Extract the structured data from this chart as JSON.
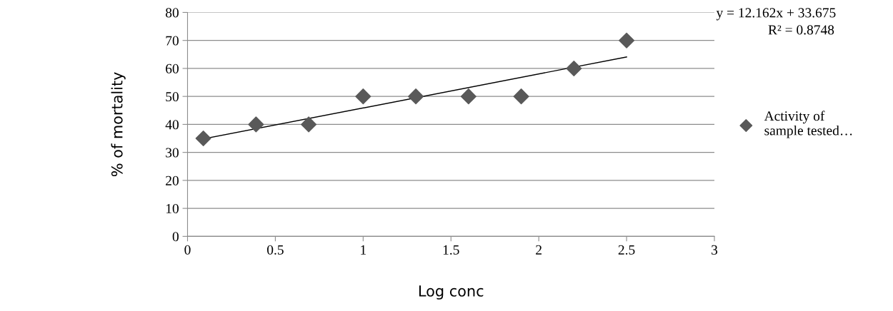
{
  "chart_data": {
    "type": "scatter",
    "xlabel": "Log conc",
    "ylabel": "% of mortality",
    "x": [
      0.09,
      0.39,
      0.69,
      1.0,
      1.3,
      1.6,
      1.9,
      2.2,
      2.5
    ],
    "series": [
      {
        "name": "Activity of\nsample tested…",
        "color": "#595959",
        "values": [
          35,
          40,
          40,
          50,
          50,
          50,
          50,
          60,
          70
        ],
        "marker": "diamond"
      },
      {
        "type": "line",
        "color": "#000000",
        "x": [
          0.09,
          2.5
        ],
        "values": [
          34.8,
          64.1
        ]
      }
    ],
    "annotations": [
      "y = 12.162x + 33.675",
      "R² = 0.8748"
    ],
    "xlim": [
      0,
      3
    ],
    "xticks": [
      0,
      0.5,
      1,
      1.5,
      2,
      2.5,
      3
    ],
    "ylim": [
      0,
      80
    ],
    "yticks": [
      0,
      10,
      20,
      30,
      40,
      50,
      60,
      70,
      80
    ],
    "grid": "y",
    "legend": "right"
  }
}
